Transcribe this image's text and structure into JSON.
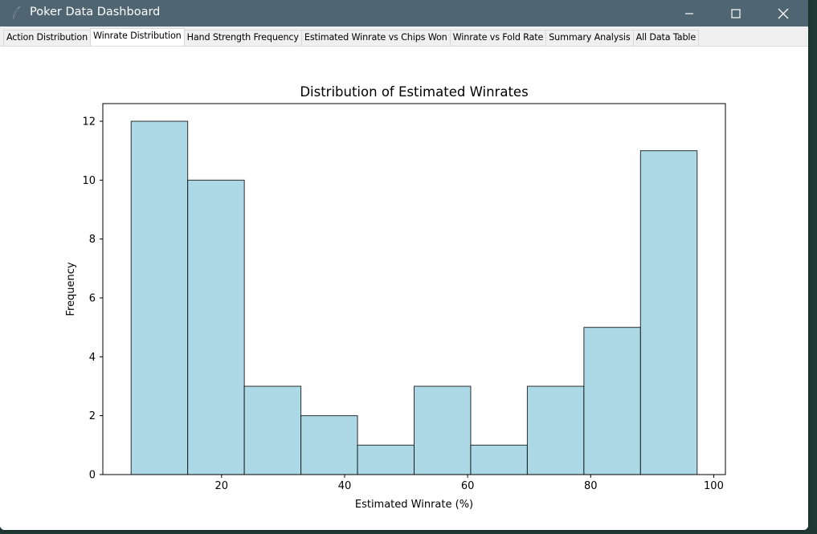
{
  "window": {
    "title": "Poker Data Dashboard",
    "icon": "feather-icon",
    "titlebar_color": "#4f6572"
  },
  "tabs": [
    {
      "label": "Action Distribution",
      "active": false
    },
    {
      "label": "Winrate Distribution",
      "active": true
    },
    {
      "label": "Hand Strength Frequency",
      "active": false
    },
    {
      "label": "Estimated Winrate vs Chips Won",
      "active": false
    },
    {
      "label": "Winrate vs Fold Rate",
      "active": false
    },
    {
      "label": "Summary Analysis",
      "active": false
    },
    {
      "label": "All Data Table",
      "active": false
    }
  ],
  "chart_data": {
    "type": "histogram",
    "title": "Distribution of Estimated Winrates",
    "xlabel": "Estimated Winrate (%)",
    "ylabel": "Frequency",
    "bin_edges": [
      5.3,
      14.5,
      23.7,
      32.9,
      42.1,
      51.3,
      60.5,
      69.7,
      78.9,
      88.1,
      97.3
    ],
    "counts": [
      12,
      10,
      3,
      2,
      1,
      3,
      1,
      3,
      5,
      11
    ],
    "xlim": [
      0.7,
      101.9
    ],
    "ylim": [
      0,
      12.6
    ],
    "xticks": [
      20,
      40,
      60,
      80,
      100
    ],
    "yticks": [
      0,
      2,
      4,
      6,
      8,
      10,
      12
    ],
    "bar_color": "#add8e6",
    "edge_color": "#000000",
    "grid": false
  }
}
